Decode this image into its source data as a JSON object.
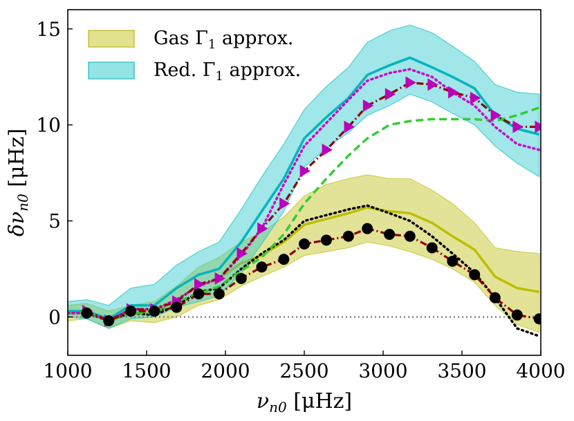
{
  "chart_data": {
    "type": "line",
    "title": "",
    "xlabel": "ν_n0 [μHz]",
    "ylabel": "δν_n0 [μHz]",
    "xlim": [
      1000,
      4000
    ],
    "ylim": [
      -2,
      16
    ],
    "grid": false,
    "legend_position": "top-left",
    "xticks": [
      1000,
      1500,
      2000,
      2500,
      3000,
      3500,
      4000
    ],
    "yticks": [
      0,
      5,
      10,
      15
    ],
    "x": [
      1000,
      1120,
      1260,
      1400,
      1550,
      1690,
      1830,
      1960,
      2100,
      2230,
      2370,
      2500,
      2640,
      2780,
      2900,
      3040,
      3170,
      3310,
      3440,
      3580,
      3710,
      3850,
      3990
    ],
    "bands": [
      {
        "name": "Gas Γ₁ approx.",
        "color": "#c8c832",
        "lower": [
          -0.2,
          -0.1,
          -0.6,
          -0.2,
          -0.3,
          0.0,
          0.6,
          0.9,
          1.6,
          2.1,
          2.6,
          3.2,
          3.4,
          3.6,
          3.9,
          3.7,
          3.4,
          3.0,
          2.5,
          1.8,
          0.6,
          -0.4,
          -0.8
        ],
        "upper": [
          0.6,
          0.7,
          0.3,
          0.6,
          0.8,
          1.6,
          2.6,
          3.1,
          3.9,
          4.4,
          5.2,
          6.3,
          6.9,
          7.2,
          7.4,
          7.2,
          7.2,
          6.6,
          5.9,
          4.9,
          3.6,
          3.4,
          3.3
        ],
        "center": [
          0.2,
          0.2,
          -0.1,
          0.2,
          0.3,
          0.9,
          1.6,
          2.0,
          2.8,
          3.2,
          3.9,
          4.8,
          5.1,
          5.4,
          5.7,
          5.5,
          5.4,
          4.9,
          4.2,
          3.5,
          2.1,
          1.5,
          1.3
        ]
      },
      {
        "name": "Red. Γ₁ approx.",
        "color": "#2ec8cc",
        "lower": [
          0.0,
          -0.1,
          -0.6,
          -0.1,
          0.0,
          0.5,
          0.8,
          1.1,
          2.3,
          3.8,
          5.5,
          7.8,
          8.8,
          9.6,
          10.5,
          11.0,
          11.6,
          11.2,
          10.6,
          10.0,
          8.9,
          8.0,
          7.3
        ],
        "upper": [
          0.8,
          0.9,
          0.6,
          1.5,
          1.7,
          2.7,
          3.4,
          3.9,
          5.6,
          7.3,
          9.0,
          10.8,
          12.0,
          13.0,
          14.3,
          14.9,
          15.2,
          14.8,
          14.1,
          13.3,
          12.1,
          11.7,
          11.6
        ],
        "center": [
          0.3,
          0.3,
          -0.1,
          0.6,
          0.6,
          1.5,
          2.2,
          2.5,
          3.9,
          5.5,
          7.2,
          9.3,
          10.4,
          11.4,
          12.6,
          13.1,
          13.5,
          13.0,
          12.5,
          11.9,
          10.5,
          9.8,
          9.5
        ]
      }
    ],
    "series": [
      {
        "name": "black dotted",
        "color": "#000000",
        "style": "dotted",
        "values": [
          0.2,
          0.2,
          -0.2,
          0.2,
          0.1,
          0.6,
          1.3,
          1.5,
          2.5,
          3.3,
          4.0,
          5.0,
          5.3,
          5.6,
          5.8,
          5.4,
          5.0,
          4.2,
          3.3,
          2.3,
          1.0,
          -0.6,
          -1.0
        ]
      },
      {
        "name": "green dashed",
        "color": "#33cc33",
        "style": "dashed",
        "values": [
          0.2,
          0.2,
          -0.2,
          0.2,
          0.2,
          0.8,
          1.2,
          1.6,
          2.4,
          3.1,
          4.3,
          5.9,
          7.2,
          8.4,
          9.3,
          10.0,
          10.2,
          10.3,
          10.3,
          10.3,
          10.2,
          10.5,
          10.9
        ]
      },
      {
        "name": "magenta dotted",
        "color": "#cc00cc",
        "style": "dotted",
        "values": [
          0.2,
          0.2,
          -0.2,
          0.4,
          0.4,
          0.9,
          1.6,
          2.0,
          3.2,
          4.6,
          6.9,
          8.9,
          10.1,
          11.3,
          12.3,
          12.7,
          12.9,
          12.5,
          11.7,
          11.0,
          9.9,
          9.0,
          8.7
        ]
      },
      {
        "name": "magenta triangles",
        "color": "#8b0000",
        "marker_color": "#bb00bb",
        "marker": "triangle-right",
        "style": "dashdot",
        "values": [
          null,
          0.3,
          -0.2,
          0.4,
          0.4,
          0.8,
          1.7,
          2.0,
          3.3,
          4.6,
          5.9,
          7.6,
          8.7,
          9.9,
          11.0,
          11.6,
          12.2,
          12.1,
          11.7,
          11.4,
          10.5,
          9.9,
          9.9
        ]
      },
      {
        "name": "black circles",
        "color": "#8b0000",
        "marker_color": "#000000",
        "marker": "circle",
        "style": "dashdot",
        "values": [
          null,
          0.2,
          -0.2,
          0.3,
          0.3,
          0.5,
          1.2,
          1.2,
          2.0,
          2.6,
          3.0,
          3.8,
          4.0,
          4.2,
          4.6,
          4.3,
          4.2,
          3.6,
          2.9,
          2.2,
          1.0,
          0.1,
          -0.1
        ]
      }
    ],
    "zero_line": {
      "y": 0,
      "color": "#808080",
      "style": "dotted"
    }
  },
  "legend": {
    "gas_label": "Gas Γ",
    "gas_sub": "1",
    "gas_suffix": " approx.",
    "red_label": "Red. Γ",
    "red_sub": "1",
    "red_suffix": " approx."
  },
  "axes": {
    "xlabel_main": "ν",
    "xlabel_sub": "n0",
    "xlabel_unit": " [μHz]",
    "ylabel_main": "δν",
    "ylabel_sub": "n0",
    "ylabel_unit": " [μHz]"
  }
}
